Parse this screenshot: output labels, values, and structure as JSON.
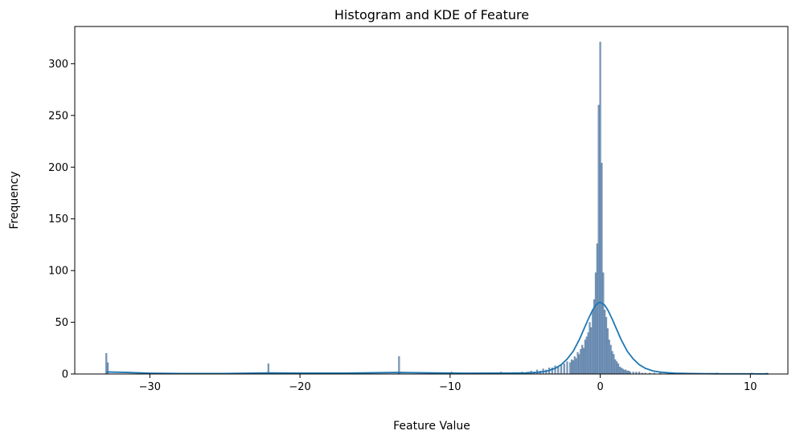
{
  "chart_data": {
    "type": "bar",
    "title": "Histogram and KDE of Feature",
    "xlabel": "Feature Value",
    "ylabel": "Frequency",
    "xlim": [
      -35,
      12.5
    ],
    "ylim": [
      0,
      336
    ],
    "xticks": [
      -30,
      -20,
      -10,
      0,
      10
    ],
    "yticks": [
      0,
      50,
      100,
      150,
      200,
      250,
      300
    ],
    "grid": false,
    "colors": {
      "bars": "#4c78a8",
      "kde": "#1f77b4"
    },
    "bin_width": 0.1,
    "histogram": {
      "bin_left": [
        -32.95,
        -32.85,
        -22.15,
        -13.45,
        -11.55,
        -11.15,
        -10.45,
        -9.95,
        -9.35,
        -8.85,
        -7.95,
        -6.65,
        -6.45,
        -5.25,
        -4.85,
        -4.65,
        -4.45,
        -4.25,
        -4.05,
        -3.85,
        -3.65,
        -3.45,
        -3.25,
        -3.05,
        -2.85,
        -2.65,
        -2.45,
        -2.25,
        -2.05,
        -1.95,
        -1.85,
        -1.75,
        -1.65,
        -1.55,
        -1.45,
        -1.35,
        -1.25,
        -1.15,
        -1.05,
        -0.95,
        -0.85,
        -0.75,
        -0.65,
        -0.55,
        -0.45,
        -0.35,
        -0.25,
        -0.15,
        -0.05,
        0.05,
        0.15,
        0.25,
        0.35,
        0.45,
        0.55,
        0.65,
        0.75,
        0.85,
        0.95,
        1.05,
        1.15,
        1.25,
        1.35,
        1.45,
        1.55,
        1.65,
        1.75,
        1.85,
        1.95,
        2.15,
        2.35,
        2.55,
        2.75,
        2.95,
        3.25,
        3.55,
        3.95,
        4.45,
        5.95,
        7.75,
        10.05,
        11.05
      ],
      "counts": [
        20,
        11,
        10,
        17,
        1,
        1,
        1,
        2,
        1,
        1,
        1,
        2,
        1,
        2,
        2,
        3,
        2,
        4,
        3,
        5,
        4,
        6,
        6,
        8,
        7,
        9,
        10,
        12,
        11,
        14,
        13,
        17,
        15,
        21,
        19,
        24,
        28,
        25,
        33,
        36,
        40,
        50,
        45,
        62,
        72,
        98,
        126,
        260,
        321,
        204,
        98,
        62,
        55,
        44,
        33,
        28,
        22,
        19,
        14,
        12,
        10,
        7,
        6,
        5,
        4,
        4,
        3,
        3,
        2,
        2,
        2,
        2,
        1,
        1,
        1,
        1,
        1,
        1,
        1,
        1,
        1,
        1
      ]
    },
    "kde": {
      "x": [
        -32.9,
        -31.5,
        -30,
        -28,
        -25,
        -22.1,
        -20,
        -17,
        -15,
        -13.4,
        -11,
        -9,
        -7,
        -6,
        -5,
        -4.5,
        -4,
        -3.5,
        -3,
        -2.6,
        -2.2,
        -1.8,
        -1.4,
        -1.1,
        -0.8,
        -0.5,
        -0.3,
        -0.1,
        0,
        0.1,
        0.3,
        0.5,
        0.8,
        1.1,
        1.4,
        1.8,
        2.2,
        2.6,
        3,
        3.5,
        4,
        4.5,
        5,
        6,
        7,
        8,
        9,
        10,
        11.2
      ],
      "y": [
        2,
        1.5,
        0.8,
        0.5,
        0.5,
        1,
        0.9,
        0.9,
        1.2,
        1.5,
        1,
        0.8,
        0.9,
        0.9,
        1,
        1.3,
        1.8,
        3,
        5.5,
        9,
        14.5,
        22,
        33,
        43,
        53,
        62,
        66.5,
        69,
        69.2,
        68.5,
        66.5,
        62,
        53,
        43,
        33,
        22,
        14.5,
        9,
        5.5,
        3,
        1.8,
        1.2,
        0.8,
        0.5,
        0.3,
        0.2,
        0.2,
        0.2,
        0.1
      ]
    }
  }
}
